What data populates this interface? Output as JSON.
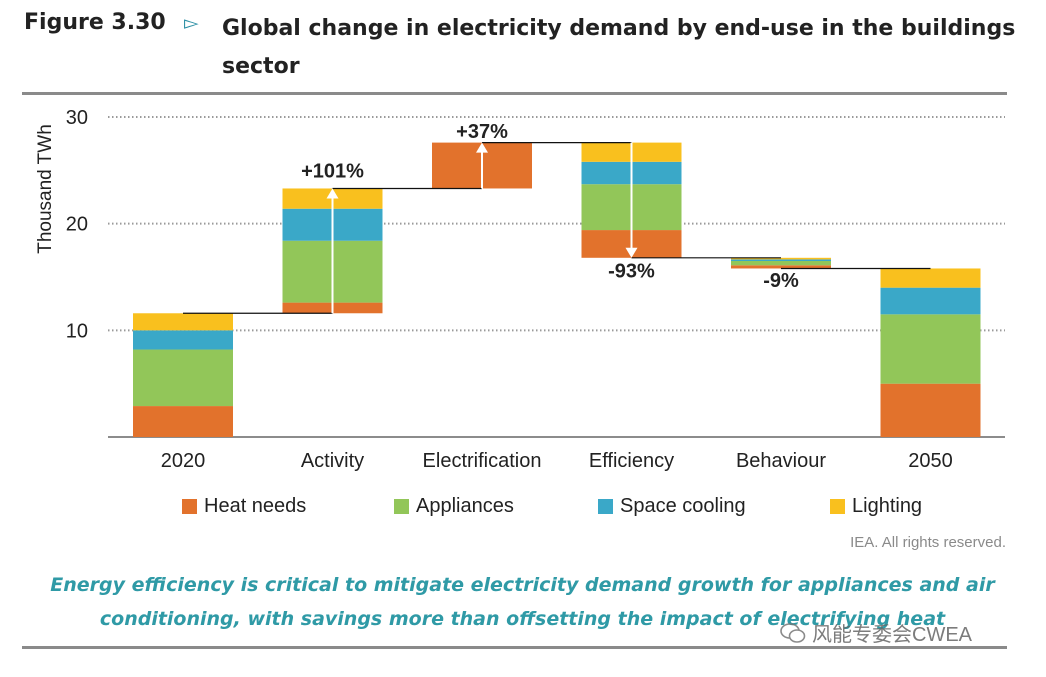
{
  "figure": {
    "label": "Figure 3.30",
    "title": "Global change in electricity demand by end-use in the buildings sector"
  },
  "chart_data": {
    "type": "waterfall-stacked-bar",
    "ylabel": "Thousand TWh",
    "ylim": [
      0,
      30
    ],
    "yticks": [
      10,
      20,
      30
    ],
    "gridlines": true,
    "categories": [
      "2020",
      "Activity",
      "Electrification",
      "Efficiency",
      "Behaviour",
      "2050"
    ],
    "series_names": [
      "Heat needs",
      "Appliances",
      "Space cooling",
      "Lighting"
    ],
    "colors": {
      "Heat needs": "#e2722c",
      "Appliances": "#92c659",
      "Space cooling": "#3aa8c8",
      "Lighting": "#f9c01e"
    },
    "stacks": [
      {
        "category": "2020",
        "segments": [
          {
            "series": "Heat needs",
            "from": 0,
            "to": 2.9
          },
          {
            "series": "Appliances",
            "from": 2.9,
            "to": 8.2
          },
          {
            "series": "Space cooling",
            "from": 8.2,
            "to": 10.0
          },
          {
            "series": "Lighting",
            "from": 10.0,
            "to": 11.6
          }
        ]
      },
      {
        "category": "Activity",
        "segments": [
          {
            "series": "Heat needs",
            "from": 11.6,
            "to": 12.6
          },
          {
            "series": "Appliances",
            "from": 12.6,
            "to": 18.4
          },
          {
            "series": "Space cooling",
            "from": 18.4,
            "to": 21.4
          },
          {
            "series": "Lighting",
            "from": 21.4,
            "to": 23.3
          }
        ]
      },
      {
        "category": "Electrification",
        "segments": [
          {
            "series": "Heat needs",
            "from": 23.3,
            "to": 27.6
          }
        ]
      },
      {
        "category": "Efficiency",
        "segments": [
          {
            "series": "Heat needs",
            "from": 16.8,
            "to": 19.4
          },
          {
            "series": "Appliances",
            "from": 19.4,
            "to": 23.7
          },
          {
            "series": "Space cooling",
            "from": 23.7,
            "to": 25.8
          },
          {
            "series": "Lighting",
            "from": 25.8,
            "to": 27.6
          }
        ]
      },
      {
        "category": "Behaviour",
        "segments": [
          {
            "series": "Heat needs",
            "from": 15.8,
            "to": 16.1
          },
          {
            "series": "Appliances",
            "from": 16.1,
            "to": 16.5
          },
          {
            "series": "Space cooling",
            "from": 16.5,
            "to": 16.65
          },
          {
            "series": "Lighting",
            "from": 16.65,
            "to": 16.8
          }
        ]
      },
      {
        "category": "2050",
        "segments": [
          {
            "series": "Heat needs",
            "from": 0,
            "to": 5.0
          },
          {
            "series": "Appliances",
            "from": 5.0,
            "to": 11.5
          },
          {
            "series": "Space cooling",
            "from": 11.5,
            "to": 14.0
          },
          {
            "series": "Lighting",
            "from": 14.0,
            "to": 15.8
          }
        ]
      }
    ],
    "connectors": [
      {
        "from": "2020",
        "to": "Activity",
        "y": 11.6
      },
      {
        "from": "Activity",
        "to": "Electrification",
        "y": 23.3
      },
      {
        "from": "Electrification",
        "to": "Efficiency",
        "y": 27.6
      },
      {
        "from": "Efficiency",
        "to": "Behaviour",
        "y": 16.8
      },
      {
        "from": "Behaviour",
        "to": "2050",
        "y": 15.8
      }
    ],
    "arrows": [
      {
        "category": "Activity",
        "from": 11.6,
        "to": 23.3
      },
      {
        "category": "Electrification",
        "from": 23.3,
        "to": 27.6
      },
      {
        "category": "Efficiency",
        "from": 27.6,
        "to": 16.8
      }
    ],
    "annotations": [
      {
        "category": "Activity",
        "text": "+101%",
        "y": 25.0
      },
      {
        "category": "Electrification",
        "text": "+37%",
        "y": 28.7
      },
      {
        "category": "Efficiency",
        "text": "-93%",
        "y": 15.6
      },
      {
        "category": "Behaviour",
        "text": "-9%",
        "y": 14.7
      }
    ]
  },
  "source": "IEA. All rights reserved.",
  "caption": "Energy efficiency is critical to mitigate electricity demand growth for appliances and air conditioning, with savings more than offsetting the impact of electrifying heat",
  "watermark": "风能专委会CWEA"
}
